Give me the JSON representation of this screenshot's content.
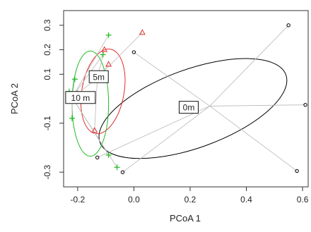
{
  "chart_data": {
    "type": "scatter",
    "title": "",
    "xlabel": "PCoA 1",
    "ylabel": "PCoA 2",
    "xlim": [
      -0.25,
      0.62
    ],
    "ylim": [
      -0.36,
      0.36
    ],
    "xticks": [
      {
        "v": -0.2,
        "label": "-0.2"
      },
      {
        "v": 0.0,
        "label": "0.0"
      },
      {
        "v": 0.2,
        "label": "0.2"
      },
      {
        "v": 0.4,
        "label": "0.4"
      },
      {
        "v": 0.6,
        "label": "0.6"
      }
    ],
    "yticks": [
      {
        "v": -0.3,
        "label": "-0.3"
      },
      {
        "v": -0.1,
        "label": "-0.1"
      },
      {
        "v": 0.1,
        "label": "0.1"
      },
      {
        "v": 0.2,
        "label": "0.2"
      },
      {
        "v": 0.3,
        "label": "0.3"
      }
    ],
    "grid": false,
    "series": [
      {
        "name": "0m",
        "marker": "circle",
        "color": "#000000",
        "centroid": [
          0.27,
          -0.03
        ],
        "ellipse": {
          "cx": 0.21,
          "cy": -0.04,
          "rx": 0.352,
          "ry": 0.16,
          "angle_deg": -20
        },
        "points": [
          [
            0.55,
            0.3
          ],
          [
            0.61,
            -0.025
          ],
          [
            0.58,
            -0.295
          ],
          [
            -0.13,
            -0.24
          ],
          [
            -0.04,
            -0.3
          ],
          [
            0.0,
            0.19
          ]
        ]
      },
      {
        "name": "5m",
        "marker": "triangle",
        "color": "#e03030",
        "centroid": [
          -0.13,
          0.085
        ],
        "ellipse": {
          "cx": -0.11,
          "cy": 0.03,
          "rx": 0.075,
          "ry": 0.175,
          "angle_deg": 10
        },
        "points": [
          [
            0.03,
            0.27
          ],
          [
            -0.105,
            0.2
          ],
          [
            -0.09,
            0.14
          ],
          [
            -0.2,
            0.02
          ],
          [
            -0.14,
            -0.13
          ]
        ]
      },
      {
        "name": "10 m",
        "marker": "plus",
        "color": "#22bb22",
        "centroid": [
          -0.22,
          0.005
        ],
        "ellipse": {
          "cx": -0.155,
          "cy": -0.02,
          "rx": 0.065,
          "ry": 0.215,
          "angle_deg": 0
        },
        "points": [
          [
            -0.09,
            0.26
          ],
          [
            -0.11,
            0.18
          ],
          [
            -0.21,
            0.08
          ],
          [
            -0.23,
            0.03
          ],
          [
            -0.22,
            -0.08
          ],
          [
            -0.09,
            -0.23
          ],
          [
            -0.06,
            -0.28
          ]
        ]
      }
    ],
    "labels": [
      {
        "text": "0m",
        "x": 0.195,
        "y": -0.035
      },
      {
        "text": "5m",
        "x": -0.125,
        "y": 0.09
      },
      {
        "text": "10 m",
        "x": -0.19,
        "y": 0.005
      }
    ]
  }
}
